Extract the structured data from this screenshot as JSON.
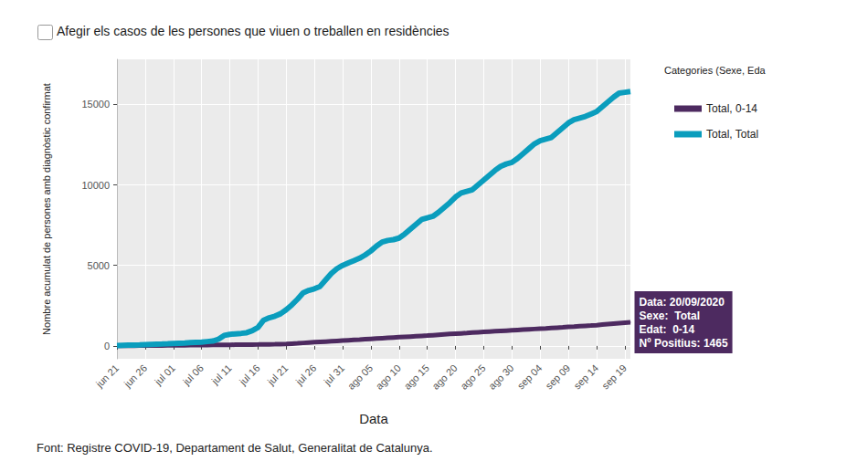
{
  "chart_data": {
    "type": "line",
    "checkbox_label": "Afegir els casos de les persones que viuen o treballen en residències",
    "source": "Font: Registre COVID-19, Departament de Salut, Generalitat de Catalunya.",
    "x_label": "Data",
    "y_label": "Nombre acumulat de persones amb diagnòstic confirmat",
    "legend_title": "Categories (Sexe, Eda",
    "legend": "right",
    "grid": true,
    "categories": [
      "jun 21",
      null,
      null,
      null,
      null,
      "jun 26",
      null,
      null,
      null,
      null,
      "jul 01",
      null,
      null,
      null,
      null,
      "jul 06",
      null,
      null,
      null,
      null,
      "jul 11",
      null,
      null,
      null,
      null,
      "jul 16",
      null,
      null,
      null,
      null,
      "jul 21",
      null,
      null,
      null,
      null,
      "jul 26",
      null,
      null,
      null,
      null,
      "jul 31",
      null,
      null,
      null,
      null,
      "ago 05",
      null,
      null,
      null,
      null,
      "ago 10",
      null,
      null,
      null,
      null,
      "ago 15",
      null,
      null,
      null,
      null,
      "ago 20",
      null,
      null,
      null,
      null,
      "ago 25",
      null,
      null,
      null,
      null,
      "ago 30",
      null,
      null,
      null,
      null,
      "sep 04",
      null,
      null,
      null,
      null,
      "sep 09",
      null,
      null,
      null,
      null,
      "sep 14",
      null,
      null,
      null,
      null,
      "sep 19",
      null
    ],
    "ylim": [
      -800,
      17800
    ],
    "yticks": [
      0,
      5000,
      10000,
      15000
    ],
    "series": [
      {
        "name": "Total, 0-14",
        "color": "#4d2a60",
        "values": [
          5,
          8,
          11,
          14,
          17,
          20,
          23,
          26,
          29,
          32,
          35,
          38,
          41,
          44,
          47,
          50,
          54,
          58,
          62,
          66,
          70,
          74,
          78,
          82,
          86,
          90,
          95,
          100,
          105,
          112,
          120,
          140,
          160,
          185,
          210,
          230,
          250,
          270,
          290,
          310,
          330,
          350,
          370,
          390,
          415,
          440,
          460,
          480,
          500,
          520,
          540,
          560,
          580,
          600,
          620,
          640,
          665,
          690,
          715,
          740,
          760,
          780,
          800,
          825,
          850,
          870,
          890,
          910,
          930,
          950,
          970,
          990,
          1010,
          1030,
          1050,
          1070,
          1090,
          1112,
          1134,
          1156,
          1180,
          1200,
          1222,
          1244,
          1266,
          1290,
          1320,
          1350,
          1380,
          1410,
          1440,
          1465
        ]
      },
      {
        "name": "Total, Total",
        "color": "#0a9dbd",
        "values": [
          20,
          35,
          45,
          55,
          65,
          80,
          95,
          105,
          115,
          130,
          150,
          165,
          180,
          200,
          220,
          240,
          270,
          300,
          420,
          650,
          720,
          750,
          780,
          820,
          950,
          1150,
          1600,
          1750,
          1850,
          2000,
          2250,
          2550,
          2900,
          3300,
          3450,
          3550,
          3700,
          4100,
          4500,
          4800,
          5000,
          5150,
          5300,
          5450,
          5650,
          5900,
          6200,
          6450,
          6550,
          6600,
          6700,
          6950,
          7250,
          7550,
          7850,
          7950,
          8050,
          8300,
          8600,
          8900,
          9250,
          9500,
          9600,
          9700,
          10000,
          10300,
          10600,
          10900,
          11150,
          11300,
          11400,
          11650,
          11950,
          12250,
          12550,
          12750,
          12850,
          12950,
          13250,
          13550,
          13850,
          14050,
          14150,
          14250,
          14400,
          14550,
          14850,
          15150,
          15450,
          15700,
          15750,
          15800
        ]
      }
    ],
    "annotation": {
      "series": "Total, 0-14",
      "text": [
        "Data: 20/09/2020",
        "Sexe:  Total",
        "Edat:  0-14",
        "Nº Positius: 1465"
      ]
    }
  }
}
